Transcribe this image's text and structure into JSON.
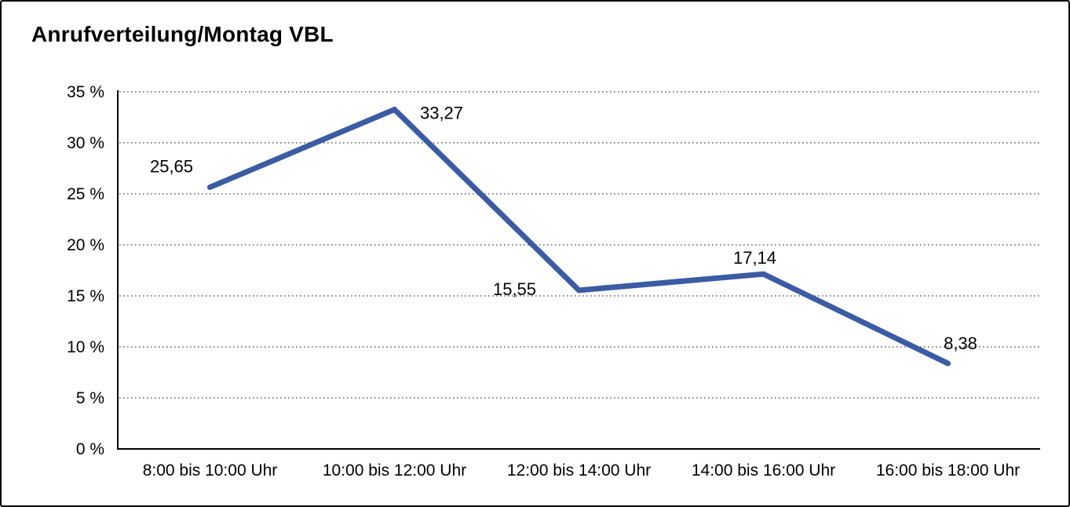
{
  "chart_data": {
    "type": "line",
    "title": "Anrufverteilung/Montag VBL",
    "categories": [
      "8:00 bis 10:00 Uhr",
      "10:00 bis 12:00 Uhr",
      "12:00 bis 14:00 Uhr",
      "14:00 bis 16:00 Uhr",
      "16:00 bis 18:00 Uhr"
    ],
    "values": [
      25.65,
      33.27,
      15.55,
      17.14,
      8.38
    ],
    "point_labels": [
      "25,65",
      "33,27",
      "15,55",
      "17,14",
      "8,38"
    ],
    "y_tick_labels": [
      "35 %",
      "30 %",
      "25 %",
      "20 %",
      "15 %",
      "10 %",
      "5 %",
      "0 %"
    ],
    "y_tick_values": [
      35,
      30,
      25,
      20,
      15,
      10,
      5,
      0
    ],
    "ylim": [
      0,
      35
    ],
    "xlabel": "",
    "ylabel": "",
    "unit": "%",
    "legend": "none",
    "grid": "horizontal-dotted",
    "line_color": "#3B5BA4",
    "grid_color": "#404040",
    "axis_color": "#000000",
    "label_color": "#000000",
    "background": "#FFFFFF"
  }
}
